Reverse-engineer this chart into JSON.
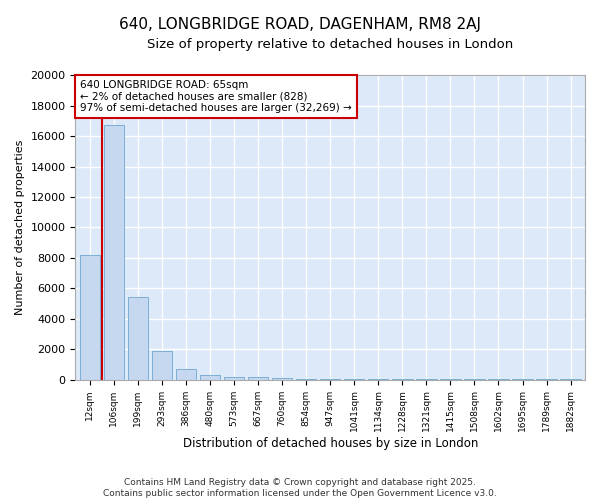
{
  "title": "640, LONGBRIDGE ROAD, DAGENHAM, RM8 2AJ",
  "subtitle": "Size of property relative to detached houses in London",
  "xlabel": "Distribution of detached houses by size in London",
  "ylabel": "Number of detached properties",
  "bar_labels": [
    "12sqm",
    "106sqm",
    "199sqm",
    "293sqm",
    "386sqm",
    "480sqm",
    "573sqm",
    "667sqm",
    "760sqm",
    "854sqm",
    "947sqm",
    "1041sqm",
    "1134sqm",
    "1228sqm",
    "1321sqm",
    "1415sqm",
    "1508sqm",
    "1602sqm",
    "1695sqm",
    "1789sqm",
    "1882sqm"
  ],
  "bar_values": [
    8200,
    16700,
    5400,
    1900,
    700,
    300,
    200,
    150,
    100,
    50,
    40,
    30,
    25,
    20,
    20,
    15,
    15,
    15,
    10,
    10,
    10
  ],
  "bar_color": "#c5d8f0",
  "bar_edge_color": "#7bafd4",
  "vline_x": 0.5,
  "vline_color": "#cc0000",
  "annotation_line1": "640 LONGBRIDGE ROAD: 65sqm",
  "annotation_line2": "← 2% of detached houses are smaller (828)",
  "annotation_line3": "97% of semi-detached houses are larger (32,269) →",
  "annotation_box_color": "#ffffff",
  "annotation_edge_color": "#cc0000",
  "ylim": [
    0,
    20000
  ],
  "yticks": [
    0,
    2000,
    4000,
    6000,
    8000,
    10000,
    12000,
    14000,
    16000,
    18000,
    20000
  ],
  "bg_color": "#dce9f8",
  "grid_color": "#ffffff",
  "fig_bg_color": "#ffffff",
  "footer_line1": "Contains HM Land Registry data © Crown copyright and database right 2025.",
  "footer_line2": "Contains public sector information licensed under the Open Government Licence v3.0."
}
